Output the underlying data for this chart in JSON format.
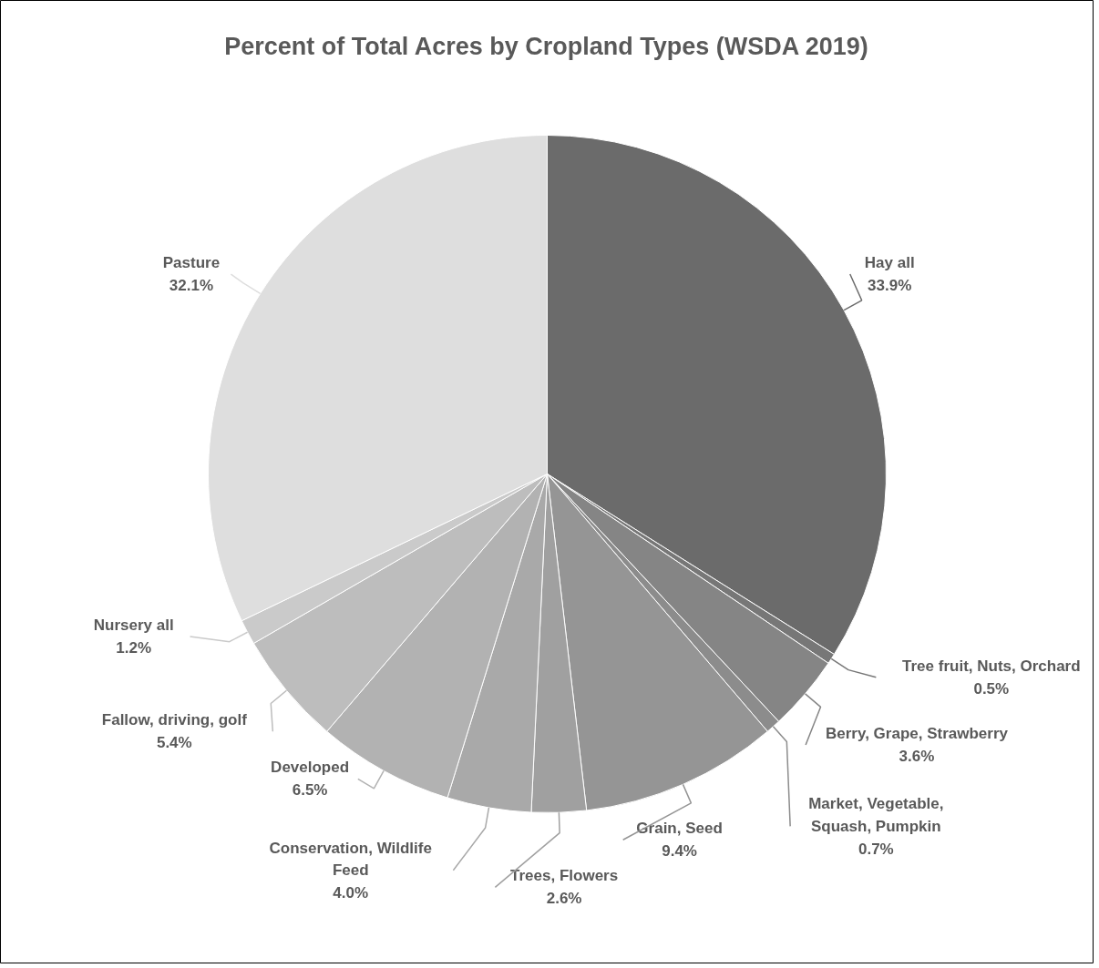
{
  "chart_data": {
    "type": "pie",
    "title": "Percent of Total Acres by Cropland Types (WSDA 2019)",
    "categories": [
      "Hay all",
      "Tree fruit, Nuts, Orchard",
      "Berry, Grape, Strawberry",
      "Market, Vegetable, Squash, Pumpkin",
      "Grain, Seed",
      "Trees, Flowers",
      "Conservation, Wildlife Feed",
      "Developed",
      "Fallow, driving, golf",
      "Nursery all",
      "Pasture"
    ],
    "values": [
      33.9,
      0.5,
      3.6,
      0.7,
      9.4,
      2.6,
      4.0,
      6.5,
      5.4,
      1.2,
      32.1
    ],
    "value_labels": [
      "33.9%",
      "0.5%",
      "3.6%",
      "0.7%",
      "9.4%",
      "2.6%",
      "4.0%",
      "6.5%",
      "5.4%",
      "1.2%",
      "32.1%"
    ],
    "colors": [
      "#6b6b6b",
      "#777777",
      "#858585",
      "#8c8c8c",
      "#959595",
      "#a0a0a0",
      "#a9a9a9",
      "#b2b2b2",
      "#bdbdbd",
      "#cacaca",
      "#dedede"
    ]
  }
}
